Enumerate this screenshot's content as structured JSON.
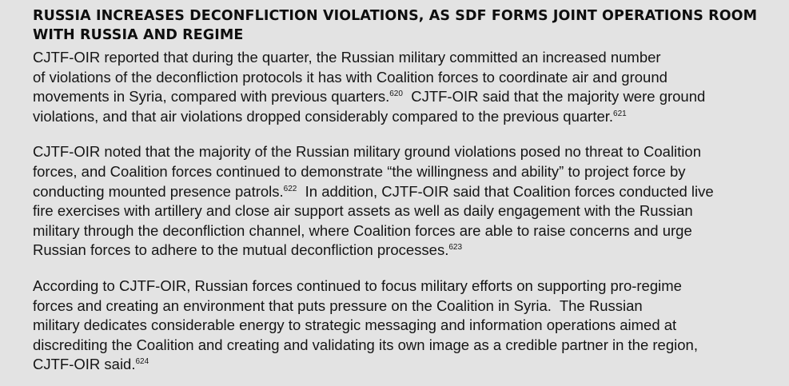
{
  "heading": {
    "line1": "RUSSIA INCREASES DECONFLICTION VIOLATIONS, AS SDF FORMS JOINT OPERATIONS ROOM",
    "line2": "WITH RUSSIA AND REGIME"
  },
  "paragraphs": [
    {
      "l1": "CJTF-OIR reported that during the quarter, the Russian military committed an increased number",
      "l2": "of violations of the deconfliction protocols it has with Coalition forces to coordinate air and ground",
      "l3a": "movements in Syria, compared with previous quarters.",
      "l3_fn": "620",
      "l3b": "  CJTF-OIR said that the majority were ground",
      "l4": "violations, and that air violations dropped considerably compared to the previous quarter.",
      "l4_fn": "621"
    },
    {
      "l1": "CJTF-OIR noted that the majority of the Russian military ground violations posed no threat to Coalition",
      "l2": "forces, and Coalition forces continued to demonstrate “the willingness and ability” to project force by",
      "l3a": "conducting mounted presence patrols.",
      "l3_fn": "622",
      "l3b": "  In addition, CJTF-OIR said that Coalition forces conducted live",
      "l4": "fire exercises with artillery and close air support assets as well as daily engagement with the Russian",
      "l5": "military through the deconfliction channel, where Coalition forces are able to raise concerns and urge",
      "l6": "Russian forces to adhere to the mutual deconfliction processes.",
      "l6_fn": "623"
    },
    {
      "l1": "According to CJTF-OIR, Russian forces continued to focus military efforts on supporting pro-regime",
      "l2": "forces and creating an environment that puts pressure on the Coalition in Syria.  The Russian",
      "l3": "military dedicates considerable energy to strategic messaging and information operations aimed at",
      "l4": "discrediting the Coalition and creating and validating its own image as a credible partner in the region,",
      "l5": "CJTF-OIR said.",
      "l5_fn": "624"
    }
  ]
}
